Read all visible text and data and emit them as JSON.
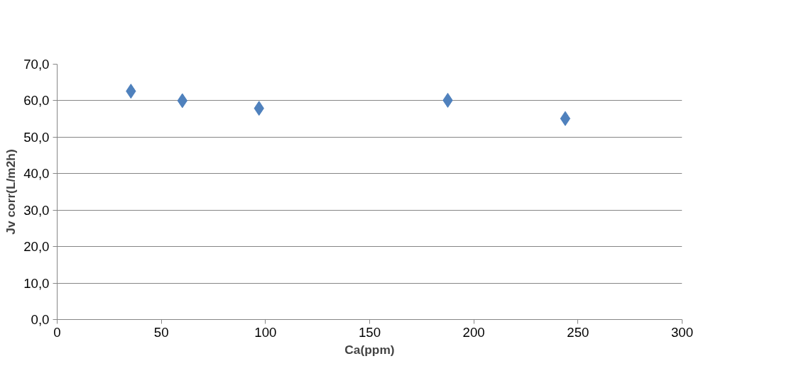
{
  "chart_data": {
    "type": "scatter",
    "xlabel": "Ca(ppm)",
    "ylabel": "Jv corr(L/m2h)",
    "x": [
      35.4,
      60.1,
      96.9,
      187.5,
      243.9
    ],
    "series": [
      {
        "color": "#4f81bd",
        "values": [
          62.6,
          60.0,
          57.9,
          60.1,
          55.1
        ]
      }
    ],
    "marker": "diamond",
    "grid": "y",
    "xlim": [
      0,
      300
    ],
    "xticks": [
      0,
      50,
      100,
      150,
      200,
      250,
      300
    ],
    "ylim": [
      0,
      70
    ],
    "yticks": [
      {
        "value": 0,
        "label": "0,0"
      },
      {
        "value": 10,
        "label": "10,0"
      },
      {
        "value": 20,
        "label": "20,0"
      },
      {
        "value": 30,
        "label": "30,0"
      },
      {
        "value": 40,
        "label": "40,0"
      },
      {
        "value": 50,
        "label": "50,0"
      },
      {
        "value": 60,
        "label": "60,0"
      },
      {
        "value": 70,
        "label": "70,0"
      }
    ]
  }
}
